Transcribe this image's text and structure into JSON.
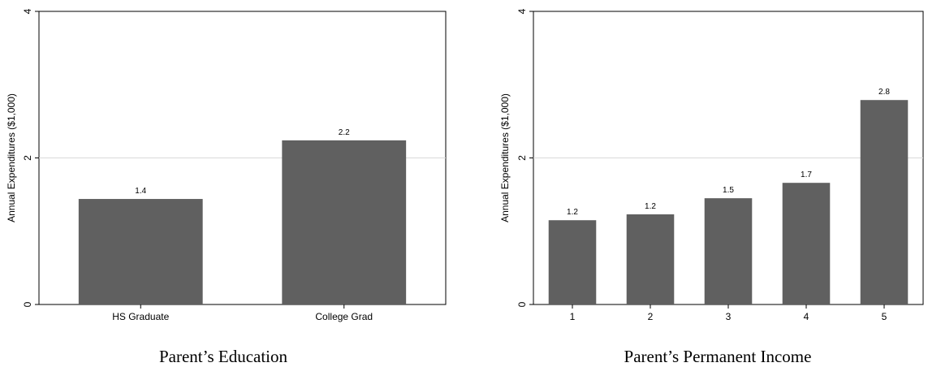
{
  "chart_data": [
    {
      "type": "bar",
      "categories": [
        "HS Graduate",
        "College Grad"
      ],
      "values": [
        1.44,
        2.24
      ],
      "value_labels": [
        "1.4",
        "2.2"
      ],
      "ylabel": "Annual Expenditures ($1,000)",
      "caption": "Parent’s Education",
      "ylim": [
        0,
        4
      ],
      "yticks": [
        "0",
        "2",
        "4"
      ],
      "grid": "horizontal at 2",
      "bar_color": "#606060",
      "grid_color": "#d9d9d9"
    },
    {
      "type": "bar",
      "categories": [
        "1",
        "2",
        "3",
        "4",
        "5"
      ],
      "values": [
        1.15,
        1.23,
        1.45,
        1.66,
        2.79
      ],
      "value_labels": [
        "1.2",
        "1.2",
        "1.5",
        "1.7",
        "2.8"
      ],
      "ylabel": "Annual Expenditures ($1,000)",
      "caption": "Parent’s Permanent Income",
      "ylim": [
        0,
        4
      ],
      "yticks": [
        "0",
        "2",
        "4"
      ],
      "grid": "horizontal at 2",
      "bar_color": "#606060",
      "grid_color": "#d9d9d9"
    }
  ]
}
